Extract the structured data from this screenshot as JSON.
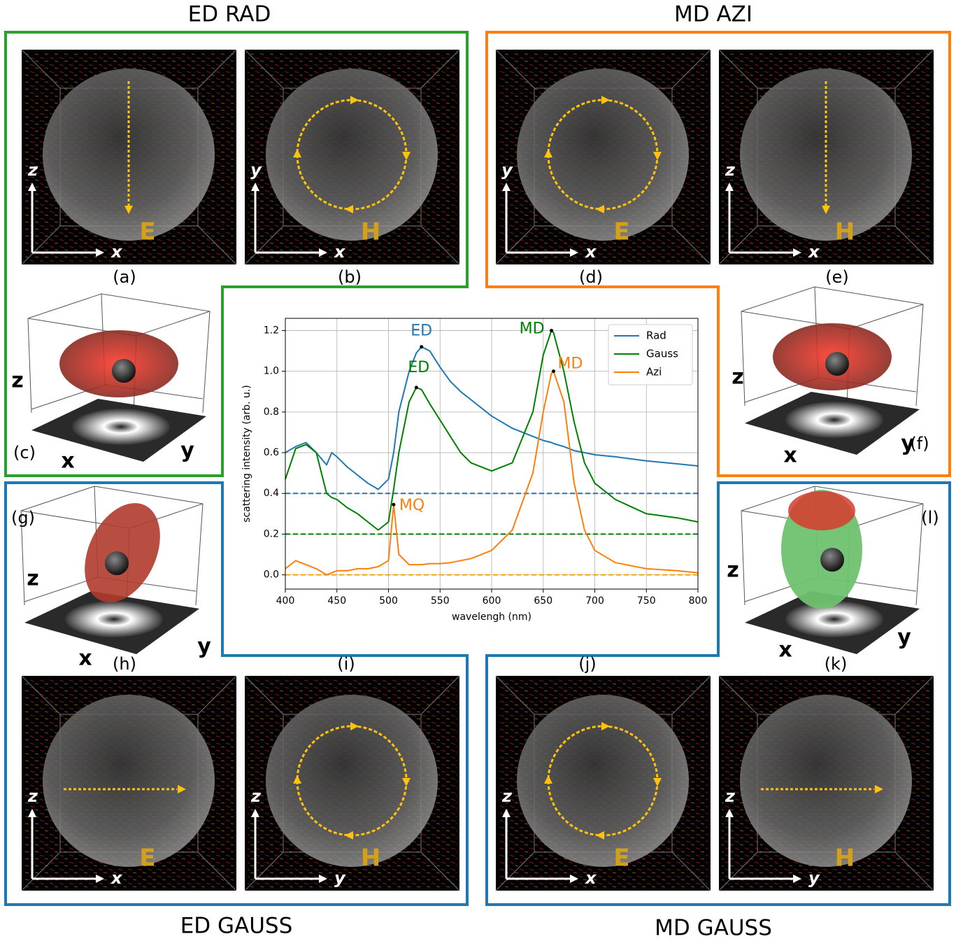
{
  "groups": [
    {
      "title": "ED RAD"
    },
    {
      "title": "MD AZI"
    },
    {
      "title": "ED GAUSS"
    },
    {
      "title": "MD GAUSS"
    }
  ],
  "tiles": [
    {
      "label": "(a)",
      "axes": [
        "z",
        "x"
      ],
      "field": "E"
    },
    {
      "label": "(b)",
      "axes": [
        "y",
        "x"
      ],
      "field": "H"
    },
    {
      "label": "(d)",
      "axes": [
        "y",
        "x"
      ],
      "field": "E"
    },
    {
      "label": "(e)",
      "axes": [
        "z",
        "x"
      ],
      "field": "H"
    },
    {
      "label": "(h)",
      "axes": [
        "z",
        "x"
      ],
      "field": "E"
    },
    {
      "label": "(i)",
      "axes": [
        "z",
        "y"
      ],
      "field": "H"
    },
    {
      "label": "(j)",
      "axes": [
        "z",
        "x"
      ],
      "field": "E"
    },
    {
      "label": "(k)",
      "axes": [
        "z",
        "y"
      ],
      "field": "H"
    }
  ],
  "radiation_plots": [
    {
      "label": "(c)",
      "axes": [
        "z",
        "x",
        "y"
      ]
    },
    {
      "label": "(f)",
      "axes": [
        "z",
        "x",
        "y"
      ]
    },
    {
      "label": "(g)",
      "axes": [
        "z",
        "x",
        "y"
      ]
    },
    {
      "label": "(l)",
      "axes": [
        "z",
        "x",
        "y"
      ]
    }
  ],
  "chart_data": {
    "type": "line",
    "xlabel": "wavelengh (nm)",
    "ylabel": "scattering intensity (arb. u.)",
    "x": [
      400,
      410,
      420,
      430,
      440,
      445,
      450,
      460,
      470,
      480,
      490,
      500,
      505,
      510,
      520,
      527,
      532,
      540,
      550,
      560,
      570,
      580,
      600,
      620,
      640,
      650,
      658,
      660,
      670,
      680,
      690,
      700,
      720,
      750,
      780,
      800
    ],
    "series": [
      {
        "name": "Rad",
        "color": "#1f77b4",
        "values": [
          0.6,
          0.63,
          0.65,
          0.6,
          0.54,
          0.6,
          0.58,
          0.53,
          0.49,
          0.45,
          0.42,
          0.47,
          0.6,
          0.8,
          1.0,
          1.09,
          1.12,
          1.1,
          1.02,
          0.95,
          0.9,
          0.86,
          0.78,
          0.72,
          0.68,
          0.66,
          0.65,
          0.645,
          0.63,
          0.61,
          0.6,
          0.59,
          0.58,
          0.56,
          0.545,
          0.535
        ]
      },
      {
        "name": "Gauss",
        "color": "#008000",
        "values": [
          0.47,
          0.62,
          0.64,
          0.6,
          0.4,
          0.38,
          0.37,
          0.33,
          0.3,
          0.26,
          0.22,
          0.26,
          0.42,
          0.6,
          0.85,
          0.92,
          0.91,
          0.84,
          0.76,
          0.68,
          0.6,
          0.55,
          0.51,
          0.55,
          0.8,
          1.08,
          1.2,
          1.19,
          1.0,
          0.75,
          0.55,
          0.45,
          0.37,
          0.3,
          0.28,
          0.26
        ]
      },
      {
        "name": "Azi",
        "color": "#ff7f0e",
        "values": [
          0.03,
          0.07,
          0.05,
          0.03,
          0.0,
          0.01,
          0.02,
          0.02,
          0.03,
          0.03,
          0.04,
          0.07,
          0.345,
          0.1,
          0.05,
          0.05,
          0.05,
          0.055,
          0.055,
          0.06,
          0.07,
          0.08,
          0.12,
          0.22,
          0.5,
          0.8,
          0.99,
          1.0,
          0.85,
          0.45,
          0.22,
          0.12,
          0.06,
          0.03,
          0.02,
          0.01
        ]
      }
    ],
    "hlines": [
      {
        "value": 0.4,
        "color": "#1f77b4"
      },
      {
        "value": 0.2,
        "color": "#008000"
      },
      {
        "value": 0.0,
        "color": "#ffa500"
      }
    ],
    "annotations": [
      {
        "text": "ED",
        "x": 532,
        "y": 1.12,
        "color": "#1f77b4"
      },
      {
        "text": "ED",
        "x": 527,
        "y": 0.92,
        "color": "#008000"
      },
      {
        "text": "MD",
        "x": 658,
        "y": 1.2,
        "color": "#008000"
      },
      {
        "text": "MD",
        "x": 660,
        "y": 1.0,
        "color": "#ff7f0e"
      },
      {
        "text": "MQ",
        "x": 505,
        "y": 0.345,
        "color": "#ff7f0e"
      }
    ],
    "xlim": [
      400,
      800
    ],
    "xticks": [
      400,
      450,
      500,
      550,
      600,
      650,
      700,
      750,
      800
    ],
    "ylim": [
      -0.07,
      1.26
    ],
    "yticks": [
      {
        "value": 0,
        "label": "0.0"
      },
      0.2,
      0.4,
      0.6,
      0.8,
      {
        "value": 1,
        "label": "1.0"
      },
      1.2
    ],
    "grid": true,
    "legend": "upper right"
  }
}
